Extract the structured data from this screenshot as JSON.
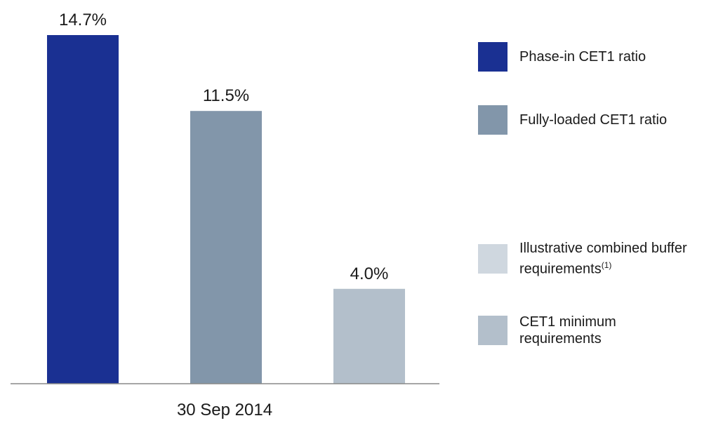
{
  "chart_data": {
    "type": "bar",
    "categories": [
      "30 Sep 2014"
    ],
    "series": [
      {
        "name": "Phase-in CET1 ratio",
        "color": "#1a3092",
        "values": [
          14.7
        ],
        "value_labels": [
          "14.7%"
        ]
      },
      {
        "name": "Fully-loaded CET1 ratio",
        "color": "#8296aa",
        "values": [
          11.5
        ],
        "value_labels": [
          "11.5%"
        ]
      },
      {
        "name": "Illustrative combined buffer requirements",
        "footnote": "(1)",
        "color": "#cfd7df",
        "values": [
          null
        ],
        "value_labels": [
          null
        ]
      },
      {
        "name": "CET1 minimum requirements",
        "color": "#b3bfcb",
        "values": [
          4.0
        ],
        "value_labels": [
          "4.0%"
        ]
      }
    ]
  }
}
